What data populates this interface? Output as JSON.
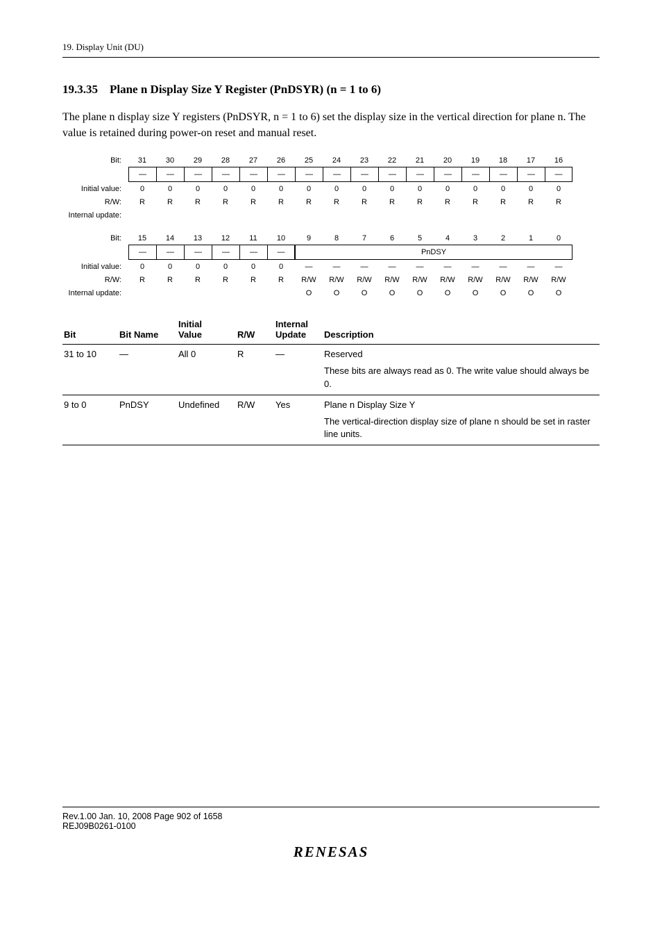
{
  "header": {
    "running": "19.   Display Unit (DU)"
  },
  "section": {
    "number": "19.3.35",
    "title": "Plane n Display Size Y Register (PnDSYR) (n = 1 to 6)"
  },
  "body": {
    "para1": "The plane n display size Y registers (PnDSYR, n = 1 to 6) set the display size in the vertical direction for plane n. The value is retained during power-on reset and manual reset."
  },
  "reg_upper": {
    "bit_label": "Bit:",
    "bits": [
      "31",
      "30",
      "29",
      "28",
      "27",
      "26",
      "25",
      "24",
      "23",
      "22",
      "21",
      "20",
      "19",
      "18",
      "17",
      "16"
    ],
    "names": [
      "—",
      "—",
      "—",
      "—",
      "—",
      "—",
      "—",
      "—",
      "—",
      "—",
      "—",
      "—",
      "—",
      "—",
      "—",
      "—"
    ],
    "iv_label": "Initial value:",
    "iv": [
      "0",
      "0",
      "0",
      "0",
      "0",
      "0",
      "0",
      "0",
      "0",
      "0",
      "0",
      "0",
      "0",
      "0",
      "0",
      "0"
    ],
    "rw_label": "R/W:",
    "rw": [
      "R",
      "R",
      "R",
      "R",
      "R",
      "R",
      "R",
      "R",
      "R",
      "R",
      "R",
      "R",
      "R",
      "R",
      "R",
      "R"
    ],
    "iu_label": "Internal update:",
    "iu": [
      "",
      "",
      "",
      "",
      "",
      "",
      "",
      "",
      "",
      "",
      "",
      "",
      "",
      "",
      "",
      ""
    ]
  },
  "reg_lower": {
    "bit_label": "Bit:",
    "bits": [
      "15",
      "14",
      "13",
      "12",
      "11",
      "10",
      "9",
      "8",
      "7",
      "6",
      "5",
      "4",
      "3",
      "2",
      "1",
      "0"
    ],
    "names_left": [
      "—",
      "—",
      "—",
      "—",
      "—",
      "—"
    ],
    "names_right_span": "PnDSY",
    "iv_label": "Initial value:",
    "iv": [
      "0",
      "0",
      "0",
      "0",
      "0",
      "0",
      "—",
      "—",
      "—",
      "—",
      "—",
      "—",
      "—",
      "—",
      "—",
      "—"
    ],
    "rw_label": "R/W:",
    "rw": [
      "R",
      "R",
      "R",
      "R",
      "R",
      "R",
      "R/W",
      "R/W",
      "R/W",
      "R/W",
      "R/W",
      "R/W",
      "R/W",
      "R/W",
      "R/W",
      "R/W"
    ],
    "iu_label": "Internal update:",
    "iu": [
      "",
      "",
      "",
      "",
      "",
      "",
      "O",
      "O",
      "O",
      "O",
      "O",
      "O",
      "O",
      "O",
      "O",
      "O"
    ]
  },
  "desc_table": {
    "headers": {
      "bit": "Bit",
      "bitname": "Bit Name",
      "initial": "Initial\nValue",
      "rw": "R/W",
      "internal": "Internal\nUpdate",
      "description": "Description"
    },
    "rows": [
      {
        "bit": "31 to 10",
        "bitname": "—",
        "initial": "All 0",
        "rw": "R",
        "internal": "—",
        "desc_title": "Reserved",
        "desc_body": "These bits are always read as 0. The write value should always be 0."
      },
      {
        "bit": "9 to 0",
        "bitname": "PnDSY",
        "initial": "Undefined",
        "rw": "R/W",
        "internal": "Yes",
        "desc_title": "Plane n Display Size Y",
        "desc_body": "The vertical-direction display size of plane n should be set in raster line units."
      }
    ]
  },
  "footer": {
    "line1": "Rev.1.00  Jan. 10, 2008  Page 902 of 1658",
    "line2": "REJ09B0261-0100",
    "logo": "RENESAS"
  }
}
